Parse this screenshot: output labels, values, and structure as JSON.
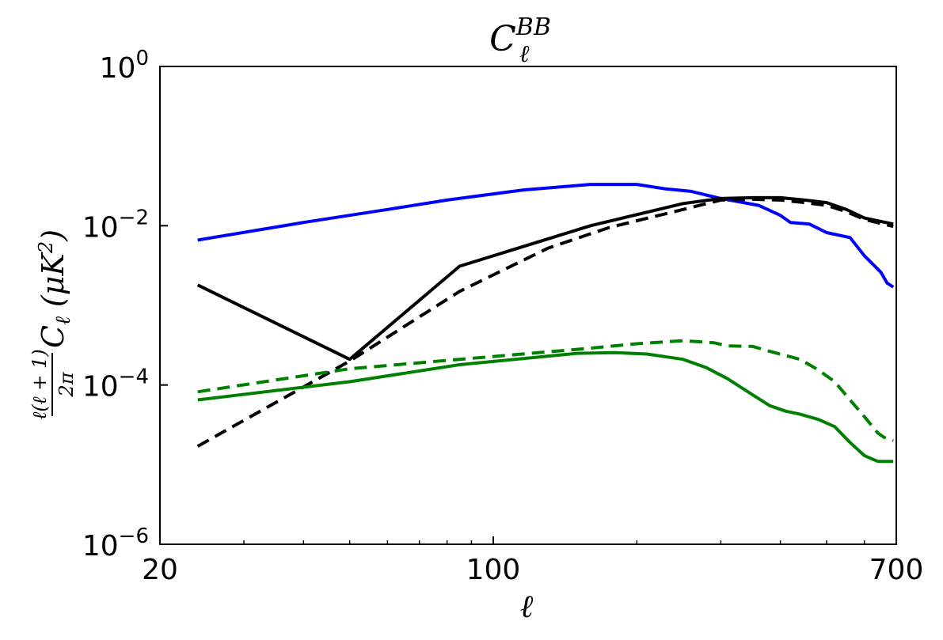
{
  "chart_data": {
    "type": "line",
    "title": "C_ℓ^BB",
    "title_main": "C",
    "title_sub": "ℓ",
    "title_sup": "BB",
    "xlabel": "ℓ",
    "ylabel": "ℓ(ℓ+1)/2π C_ℓ (μK²)",
    "ylabel_frac_num": "ℓ(ℓ + 1)",
    "ylabel_frac_den": "2π",
    "ylabel_sym": "C",
    "ylabel_sub": "ℓ",
    "ylabel_unit": "(μK",
    "ylabel_unit_sup": "2",
    "ylabel_unit_close": ")",
    "xscale": "log",
    "yscale": "log",
    "xlim": [
      20,
      700
    ],
    "ylim": [
      1e-06,
      1
    ],
    "xticks": [
      {
        "value": 20,
        "label": "20"
      },
      {
        "value": 100,
        "label": "100"
      },
      {
        "value": 700,
        "label": "700"
      }
    ],
    "yticks": [
      {
        "value": 1e-06,
        "base": "10",
        "exp": "−6"
      },
      {
        "value": 0.0001,
        "base": "10",
        "exp": "−4"
      },
      {
        "value": 0.01,
        "base": "10",
        "exp": "−2"
      },
      {
        "value": 1,
        "base": "10",
        "exp": "0"
      }
    ],
    "grid": false,
    "series": [
      {
        "color": "#0000ff",
        "style": "solid",
        "x": [
          24,
          40,
          60,
          80,
          115,
          160,
          200,
          230,
          260,
          300,
          360,
          400,
          420,
          460,
          500,
          560,
          600,
          650,
          670,
          690
        ],
        "y": [
          0.0066,
          0.011,
          0.016,
          0.021,
          0.028,
          0.033,
          0.033,
          0.029,
          0.027,
          0.022,
          0.018,
          0.0135,
          0.011,
          0.0105,
          0.0082,
          0.0071,
          0.0042,
          0.0026,
          0.0019,
          0.0017
        ]
      },
      {
        "color": "#000000",
        "style": "solid",
        "x": [
          24,
          50,
          85,
          160,
          250,
          300,
          350,
          400,
          450,
          500,
          550,
          600,
          690
        ],
        "y": [
          0.0018,
          0.00021,
          0.0031,
          0.01,
          0.019,
          0.022,
          0.0225,
          0.0225,
          0.021,
          0.0195,
          0.016,
          0.0125,
          0.0105
        ]
      },
      {
        "color": "#000000",
        "style": "dashed",
        "x": [
          24,
          50,
          85,
          130,
          175,
          250,
          300,
          350,
          400,
          450,
          500,
          550,
          600,
          690
        ],
        "y": [
          1.7e-05,
          0.0002,
          0.0015,
          0.0052,
          0.0095,
          0.016,
          0.021,
          0.0215,
          0.021,
          0.0195,
          0.018,
          0.015,
          0.012,
          0.0098
        ]
      },
      {
        "color": "#008000",
        "style": "solid",
        "x": [
          24,
          50,
          85,
          150,
          180,
          210,
          250,
          280,
          310,
          350,
          380,
          410,
          440,
          480,
          520,
          560,
          600,
          640,
          660,
          690
        ],
        "y": [
          6.5e-05,
          0.00011,
          0.00018,
          0.00025,
          0.000255,
          0.000245,
          0.00021,
          0.000165,
          0.00012,
          7.5e-05,
          5.5e-05,
          4.7e-05,
          4.3e-05,
          3.7e-05,
          3e-05,
          1.9e-05,
          1.3e-05,
          1.1e-05,
          1.1e-05,
          1.1e-05
        ]
      },
      {
        "color": "#008000",
        "style": "dashed",
        "x": [
          24,
          50,
          85,
          120,
          160,
          200,
          250,
          290,
          310,
          350,
          380,
          440,
          480,
          520,
          560,
          600,
          640,
          660,
          690
        ],
        "y": [
          8.2e-05,
          0.00016,
          0.00021,
          0.00025,
          0.00029,
          0.00033,
          0.00036,
          0.00034,
          0.00031,
          0.000305,
          0.000265,
          0.00021,
          0.000155,
          0.00011,
          6.5e-05,
          4e-05,
          2.5e-05,
          2.2e-05,
          2e-05
        ]
      }
    ]
  }
}
